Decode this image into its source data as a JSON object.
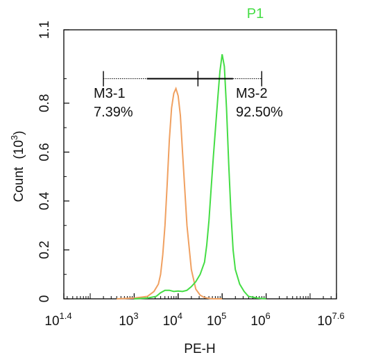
{
  "chart_data": {
    "type": "area",
    "title": "P1",
    "xlabel": "PE-H",
    "ylabel": "Count",
    "ylabel_unit": "(10",
    "ylabel_unit_exp": "3",
    "ylabel_unit_close": ")",
    "x_scale": "log10",
    "xlim": [
      1.4,
      7.6
    ],
    "ylim": [
      0,
      1.1
    ],
    "x_ticks": [
      {
        "exp": 1.4,
        "base": "10",
        "sup": "1.4"
      },
      {
        "exp": 3,
        "base": "10",
        "sup": "3"
      },
      {
        "exp": 4,
        "base": "10",
        "sup": "4"
      },
      {
        "exp": 5,
        "base": "10",
        "sup": "5"
      },
      {
        "exp": 6,
        "base": "10",
        "sup": "6"
      },
      {
        "exp": 7.6,
        "base": "10",
        "sup": "7.6"
      }
    ],
    "y_ticks": [
      {
        "value": 0,
        "label": "0"
      },
      {
        "value": 0.2,
        "label": "0.2"
      },
      {
        "value": 0.4,
        "label": "0.4"
      },
      {
        "value": 0.6,
        "label": "0.6"
      },
      {
        "value": 0.8,
        "label": "0.8"
      },
      {
        "value": 1.1,
        "label": "1.1"
      }
    ],
    "colors": {
      "axis": "#000000",
      "orange": "#f0a060",
      "green": "#44dd44",
      "title": "#44dd44"
    },
    "series": [
      {
        "color": "orange",
        "x": [
          2.6,
          3.0,
          3.3,
          3.45,
          3.55,
          3.6,
          3.65,
          3.7,
          3.75,
          3.8,
          3.85,
          3.9,
          3.95,
          4.0,
          4.05,
          4.1,
          4.15,
          4.2,
          4.3,
          4.4,
          4.5,
          4.6,
          4.7,
          4.8,
          5.0
        ],
        "y": [
          0,
          0.003,
          0.01,
          0.03,
          0.06,
          0.1,
          0.18,
          0.3,
          0.47,
          0.65,
          0.78,
          0.84,
          0.86,
          0.83,
          0.75,
          0.6,
          0.45,
          0.3,
          0.12,
          0.04,
          0.015,
          0.005,
          0.002,
          0,
          0
        ]
      },
      {
        "color": "green",
        "x": [
          3.0,
          3.3,
          3.5,
          3.6,
          3.7,
          3.8,
          3.9,
          4.0,
          4.1,
          4.2,
          4.3,
          4.4,
          4.5,
          4.6,
          4.65,
          4.7,
          4.75,
          4.8,
          4.85,
          4.9,
          4.95,
          5.0,
          5.05,
          5.1,
          5.15,
          5.2,
          5.25,
          5.3,
          5.4,
          5.5,
          5.6,
          5.8,
          6.0
        ],
        "y": [
          0,
          0.003,
          0.01,
          0.025,
          0.035,
          0.035,
          0.03,
          0.032,
          0.03,
          0.035,
          0.05,
          0.07,
          0.1,
          0.15,
          0.22,
          0.32,
          0.45,
          0.58,
          0.7,
          0.82,
          0.93,
          1.0,
          0.95,
          0.78,
          0.55,
          0.35,
          0.2,
          0.12,
          0.06,
          0.03,
          0.01,
          0.003,
          0
        ]
      }
    ],
    "markers": [
      {
        "name": "M3-1",
        "label": "M3-1",
        "percent": "7.39%",
        "range": [
          2.3,
          4.45
        ],
        "style": "dotted-then-solid"
      },
      {
        "name": "M3-2",
        "label": "M3-2",
        "percent": "92.50%",
        "range": [
          4.45,
          5.9
        ],
        "style": "solid-then-dotted"
      }
    ],
    "marker_y": 0.9
  }
}
